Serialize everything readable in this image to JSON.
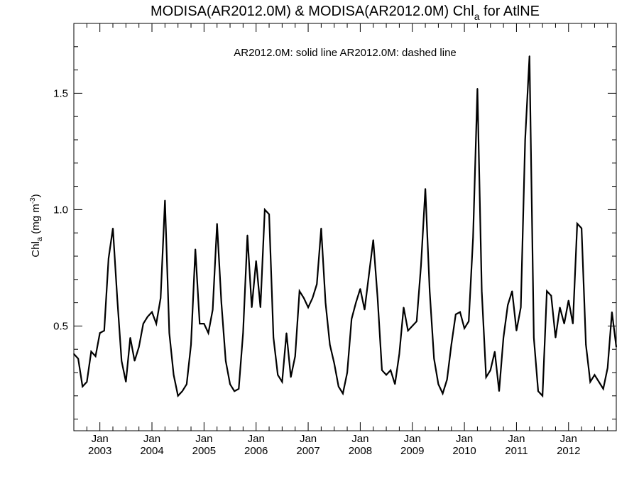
{
  "chart_data": {
    "type": "line",
    "title_main": "MODISA(AR2012.0M) & MODISA(AR2012.0M)  Chl",
    "title_sub": "a",
    "title_tail": " for AtlNE",
    "ylabel_main": "Chl",
    "ylabel_sub": "a",
    "ylabel_unit": " (mg m",
    "ylabel_exp": "-3",
    "ylabel_close": ")",
    "annotation": "AR2012.0M: solid line   AR2012.0M: dashed line",
    "x_start": "2002-07",
    "x_end": "2012-12",
    "ylim": [
      0.05,
      1.8
    ],
    "yticks": [
      "0.5",
      "1.0",
      "1.5"
    ],
    "ytick_values": [
      0.5,
      1.0,
      1.5
    ],
    "xtick_month_label": "Jan",
    "xtick_years": [
      "2003",
      "2004",
      "2005",
      "2006",
      "2007",
      "2008",
      "2009",
      "2010",
      "2011",
      "2012"
    ],
    "grid": false,
    "series": [
      {
        "style": "solid",
        "color": "#000000",
        "points": [
          [
            "2002-07",
            0.38
          ],
          [
            "2002-08",
            0.36
          ],
          [
            "2002-09",
            0.24
          ],
          [
            "2002-10",
            0.26
          ],
          [
            "2002-11",
            0.39
          ],
          [
            "2002-12",
            0.37
          ],
          [
            "2003-01",
            0.47
          ],
          [
            "2003-02",
            0.48
          ],
          [
            "2003-03",
            0.79
          ],
          [
            "2003-04",
            0.92
          ],
          [
            "2003-05",
            0.62
          ],
          [
            "2003-06",
            0.35
          ],
          [
            "2003-07",
            0.26
          ],
          [
            "2003-08",
            0.45
          ],
          [
            "2003-09",
            0.35
          ],
          [
            "2003-10",
            0.41
          ],
          [
            "2003-11",
            0.51
          ],
          [
            "2003-12",
            0.54
          ],
          [
            "2004-01",
            0.56
          ],
          [
            "2004-02",
            0.51
          ],
          [
            "2004-03",
            0.62
          ],
          [
            "2004-04",
            1.04
          ],
          [
            "2004-05",
            0.47
          ],
          [
            "2004-06",
            0.29
          ],
          [
            "2004-07",
            0.2
          ],
          [
            "2004-08",
            0.22
          ],
          [
            "2004-09",
            0.25
          ],
          [
            "2004-10",
            0.42
          ],
          [
            "2004-11",
            0.83
          ],
          [
            "2004-12",
            0.51
          ],
          [
            "2005-01",
            0.51
          ],
          [
            "2005-02",
            0.47
          ],
          [
            "2005-03",
            0.57
          ],
          [
            "2005-04",
            0.94
          ],
          [
            "2005-05",
            0.6
          ],
          [
            "2005-06",
            0.35
          ],
          [
            "2005-07",
            0.25
          ],
          [
            "2005-08",
            0.22
          ],
          [
            "2005-09",
            0.23
          ],
          [
            "2005-10",
            0.47
          ],
          [
            "2005-11",
            0.89
          ],
          [
            "2005-12",
            0.58
          ],
          [
            "2006-01",
            0.78
          ],
          [
            "2006-02",
            0.58
          ],
          [
            "2006-03",
            1.0
          ],
          [
            "2006-04",
            0.98
          ],
          [
            "2006-05",
            0.45
          ],
          [
            "2006-06",
            0.29
          ],
          [
            "2006-07",
            0.26
          ],
          [
            "2006-08",
            0.47
          ],
          [
            "2006-09",
            0.28
          ],
          [
            "2006-10",
            0.37
          ],
          [
            "2006-11",
            0.65
          ],
          [
            "2006-12",
            0.62
          ],
          [
            "2007-01",
            0.58
          ],
          [
            "2007-02",
            0.62
          ],
          [
            "2007-03",
            0.68
          ],
          [
            "2007-04",
            0.92
          ],
          [
            "2007-05",
            0.6
          ],
          [
            "2007-06",
            0.42
          ],
          [
            "2007-07",
            0.34
          ],
          [
            "2007-08",
            0.24
          ],
          [
            "2007-09",
            0.21
          ],
          [
            "2007-10",
            0.3
          ],
          [
            "2007-11",
            0.53
          ],
          [
            "2007-12",
            0.6
          ],
          [
            "2008-01",
            0.66
          ],
          [
            "2008-02",
            0.57
          ],
          [
            "2008-03",
            0.72
          ],
          [
            "2008-04",
            0.87
          ],
          [
            "2008-05",
            0.62
          ],
          [
            "2008-06",
            0.31
          ],
          [
            "2008-07",
            0.29
          ],
          [
            "2008-08",
            0.31
          ],
          [
            "2008-09",
            0.25
          ],
          [
            "2008-10",
            0.38
          ],
          [
            "2008-11",
            0.58
          ],
          [
            "2008-12",
            0.48
          ],
          [
            "2009-01",
            0.5
          ],
          [
            "2009-02",
            0.52
          ],
          [
            "2009-03",
            0.76
          ],
          [
            "2009-04",
            1.09
          ],
          [
            "2009-05",
            0.65
          ],
          [
            "2009-06",
            0.36
          ],
          [
            "2009-07",
            0.25
          ],
          [
            "2009-08",
            0.21
          ],
          [
            "2009-09",
            0.27
          ],
          [
            "2009-10",
            0.42
          ],
          [
            "2009-11",
            0.55
          ],
          [
            "2009-12",
            0.56
          ],
          [
            "2010-01",
            0.49
          ],
          [
            "2010-02",
            0.52
          ],
          [
            "2010-03",
            0.88
          ],
          [
            "2010-04",
            1.52
          ],
          [
            "2010-05",
            0.65
          ],
          [
            "2010-06",
            0.28
          ],
          [
            "2010-07",
            0.31
          ],
          [
            "2010-08",
            0.39
          ],
          [
            "2010-09",
            0.22
          ],
          [
            "2010-10",
            0.45
          ],
          [
            "2010-11",
            0.59
          ],
          [
            "2010-12",
            0.65
          ],
          [
            "2011-01",
            0.48
          ],
          [
            "2011-02",
            0.58
          ],
          [
            "2011-03",
            1.3
          ],
          [
            "2011-04",
            1.66
          ],
          [
            "2011-05",
            0.45
          ],
          [
            "2011-06",
            0.22
          ],
          [
            "2011-07",
            0.2
          ],
          [
            "2011-08",
            0.65
          ],
          [
            "2011-09",
            0.63
          ],
          [
            "2011-10",
            0.45
          ],
          [
            "2011-11",
            0.58
          ],
          [
            "2011-12",
            0.51
          ],
          [
            "2012-01",
            0.61
          ],
          [
            "2012-02",
            0.51
          ],
          [
            "2012-03",
            0.94
          ],
          [
            "2012-04",
            0.92
          ],
          [
            "2012-05",
            0.42
          ],
          [
            "2012-06",
            0.26
          ],
          [
            "2012-07",
            0.29
          ],
          [
            "2012-08",
            0.26
          ],
          [
            "2012-09",
            0.23
          ],
          [
            "2012-10",
            0.32
          ],
          [
            "2012-11",
            0.56
          ],
          [
            "2012-12",
            0.41
          ]
        ]
      }
    ]
  }
}
